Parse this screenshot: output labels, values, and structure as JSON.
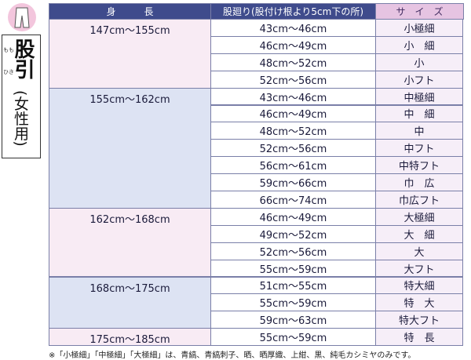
{
  "sidebar": {
    "title": "股引",
    "ruby": [
      "もも",
      "ひき"
    ],
    "subtitle": "(女性用)"
  },
  "table": {
    "header": [
      "身　　　長",
      "股廻り(股付け根より5cm下の所)",
      "サ　イ　ズ"
    ],
    "groups": [
      {
        "height": "147cm～155cm",
        "rows": [
          [
            "43cm～46cm",
            "小極細"
          ],
          [
            "46cm～49cm",
            "小　細"
          ],
          [
            "48cm～52cm",
            "小"
          ],
          [
            "52cm～56cm",
            "小フト"
          ]
        ]
      },
      {
        "height": "155cm～162cm",
        "rows": [
          [
            "43cm～46cm",
            "中極細"
          ],
          [
            "46cm～49cm",
            "中　細"
          ],
          [
            "48cm～52cm",
            "中"
          ],
          [
            "52cm～56cm",
            "中フト"
          ],
          [
            "56cm～61cm",
            "中特フト"
          ],
          [
            "59cm～66cm",
            "巾　広"
          ],
          [
            "66cm～74cm",
            "巾広フト"
          ]
        ]
      },
      {
        "height": "162cm～168cm",
        "rows": [
          [
            "46cm～49cm",
            "大極細"
          ],
          [
            "49cm～52cm",
            "大　細"
          ],
          [
            "52cm～56cm",
            "大"
          ],
          [
            "55cm～59cm",
            "大フト"
          ]
        ]
      },
      {
        "height": "168cm～175cm",
        "rows": [
          [
            "51cm～55cm",
            "特大細"
          ],
          [
            "55cm～59cm",
            "特　大"
          ],
          [
            "59cm～63cm",
            "特大フト"
          ]
        ]
      },
      {
        "height": "175cm～185cm",
        "rows": [
          [
            "55cm～59cm",
            "特　長"
          ]
        ]
      }
    ]
  },
  "footnote": "※「小極細」「中極細」「大極細」は、青縞、青縞刺子、晒、晒厚織、上紺、黒、純毛カシミヤのみです。"
}
